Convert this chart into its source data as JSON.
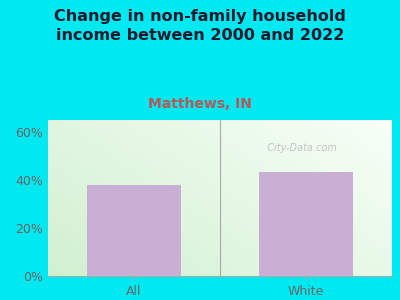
{
  "title": "Change in non-family household\nincome between 2000 and 2022",
  "subtitle": "Matthews, IN",
  "categories": [
    "All",
    "White"
  ],
  "values": [
    38.0,
    43.5
  ],
  "bar_color": "#c9afd4",
  "title_color": "#1a1a2e",
  "subtitle_color": "#b05a5a",
  "tick_label_color": "#666666",
  "background_outer": "#00e8f0",
  "watermark": "  City-Data.com",
  "ylim": [
    0,
    65
  ],
  "yticks": [
    0,
    20,
    40,
    60
  ],
  "ytick_labels": [
    "0%",
    "20%",
    "40%",
    "60%"
  ],
  "title_fontsize": 11.5,
  "subtitle_fontsize": 10,
  "tick_fontsize": 9,
  "bar_width": 0.55
}
